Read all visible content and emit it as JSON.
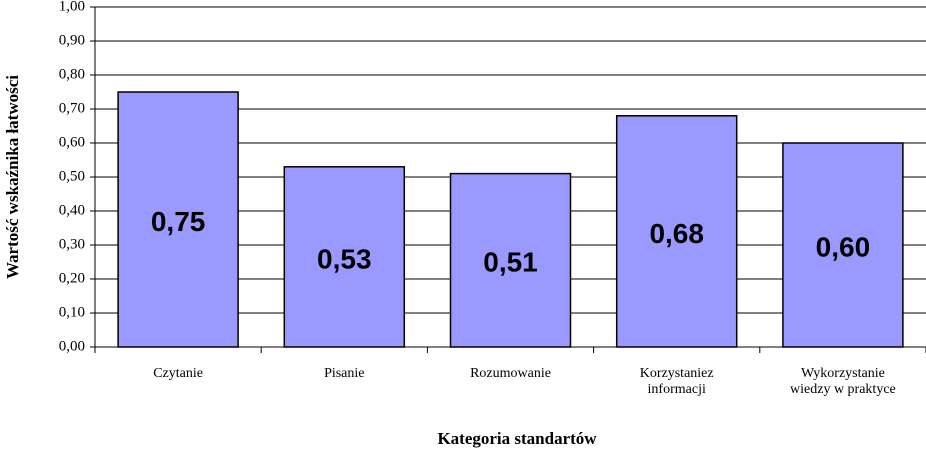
{
  "chart_data": {
    "type": "bar",
    "x_label": "Kategoria standartów",
    "y_label": "Wartość wskaźnika łatwości",
    "categories": [
      "Czytanie",
      "Pisanie",
      "Rozumowanie",
      "Korzystaniez informacji",
      "Wykorzystanie wiedzy w praktyce"
    ],
    "values": [
      0.75,
      0.53,
      0.51,
      0.68,
      0.6
    ],
    "value_labels": [
      "0,75",
      "0,53",
      "0,51",
      "0,68",
      "0,60"
    ],
    "color": "#9999ff",
    "ylim": [
      0,
      1
    ],
    "yticks": [
      {
        "value": 0,
        "label": "0,00"
      },
      {
        "value": 0.1,
        "label": "0,10"
      },
      {
        "value": 0.2,
        "label": "0,20"
      },
      {
        "value": 0.3,
        "label": "0,30"
      },
      {
        "value": 0.4,
        "label": "0,40"
      },
      {
        "value": 0.5,
        "label": "0,50"
      },
      {
        "value": 0.6,
        "label": "0,60"
      },
      {
        "value": 0.7,
        "label": "0,70"
      },
      {
        "value": 0.8,
        "label": "0,80"
      },
      {
        "value": 0.9,
        "label": "0,90"
      },
      {
        "value": 1,
        "label": "1,00"
      }
    ],
    "grid": true
  }
}
